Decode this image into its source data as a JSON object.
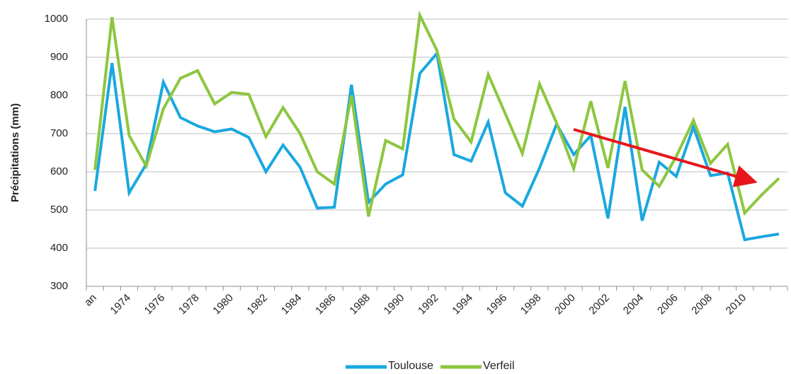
{
  "chart_data": {
    "type": "line",
    "y_label": "Précipitations (mm)",
    "categories": [
      "an",
      null,
      "1974",
      null,
      "1976",
      null,
      "1978",
      null,
      "1980",
      null,
      "1982",
      null,
      "1984",
      null,
      "1986",
      null,
      "1988",
      null,
      "1990",
      null,
      "1992",
      null,
      "1994",
      null,
      "1996",
      null,
      "1998",
      null,
      "2000",
      null,
      "2002",
      null,
      "2004",
      null,
      "2006",
      null,
      "2008",
      null,
      "2010",
      null,
      null
    ],
    "series": [
      {
        "name": "Toulouse",
        "color": "#1aa8e0",
        "values": [
          550,
          885,
          545,
          620,
          835,
          742,
          720,
          705,
          712,
          690,
          600,
          670,
          612,
          505,
          507,
          828,
          520,
          568,
          592,
          858,
          910,
          645,
          628,
          730,
          545,
          510,
          610,
          725,
          645,
          695,
          478,
          770,
          472,
          625,
          588,
          718,
          590,
          597,
          422,
          430,
          437
        ]
      },
      {
        "name": "Verfeil",
        "color": "#8dc63f",
        "values": [
          605,
          1005,
          695,
          615,
          765,
          845,
          865,
          778,
          808,
          803,
          692,
          768,
          700,
          600,
          568,
          800,
          483,
          682,
          660,
          1010,
          918,
          738,
          678,
          855,
          752,
          648,
          830,
          728,
          608,
          785,
          610,
          838,
          605,
          562,
          640,
          735,
          622,
          672,
          492,
          540,
          583
        ]
      }
    ],
    "ylim": [
      300,
      1000
    ],
    "yticks": [
      300,
      400,
      500,
      600,
      700,
      800,
      900,
      1000
    ],
    "grid": true
  }
}
